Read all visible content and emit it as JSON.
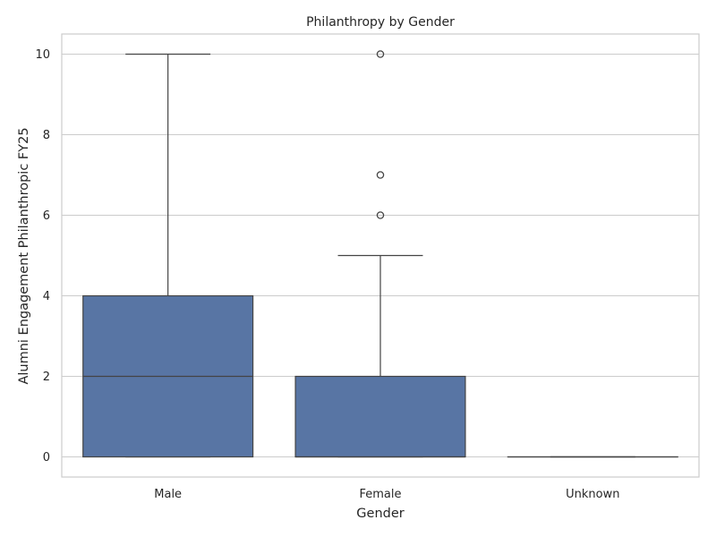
{
  "chart_data": {
    "type": "box",
    "title": "Philanthropy by Gender",
    "xlabel": "Gender",
    "ylabel": "Alumni Engagement Philanthropic FY25",
    "categories": [
      "Male",
      "Female",
      "Unknown"
    ],
    "ylim": [
      -0.5,
      10.5
    ],
    "yticks": [
      0,
      2,
      4,
      6,
      8,
      10
    ],
    "grid": true,
    "box_color": "#5875a4",
    "boxes": [
      {
        "category": "Male",
        "whisker_low": 0,
        "q1": 0,
        "median": 2,
        "q3": 4,
        "whisker_high": 10,
        "outliers": []
      },
      {
        "category": "Female",
        "whisker_low": 0,
        "q1": 0,
        "median": 0,
        "q3": 2,
        "whisker_high": 5,
        "outliers": [
          6,
          7,
          10
        ]
      },
      {
        "category": "Unknown",
        "whisker_low": 0,
        "q1": 0,
        "median": 0,
        "q3": 0,
        "whisker_high": 0,
        "outliers": []
      }
    ]
  }
}
